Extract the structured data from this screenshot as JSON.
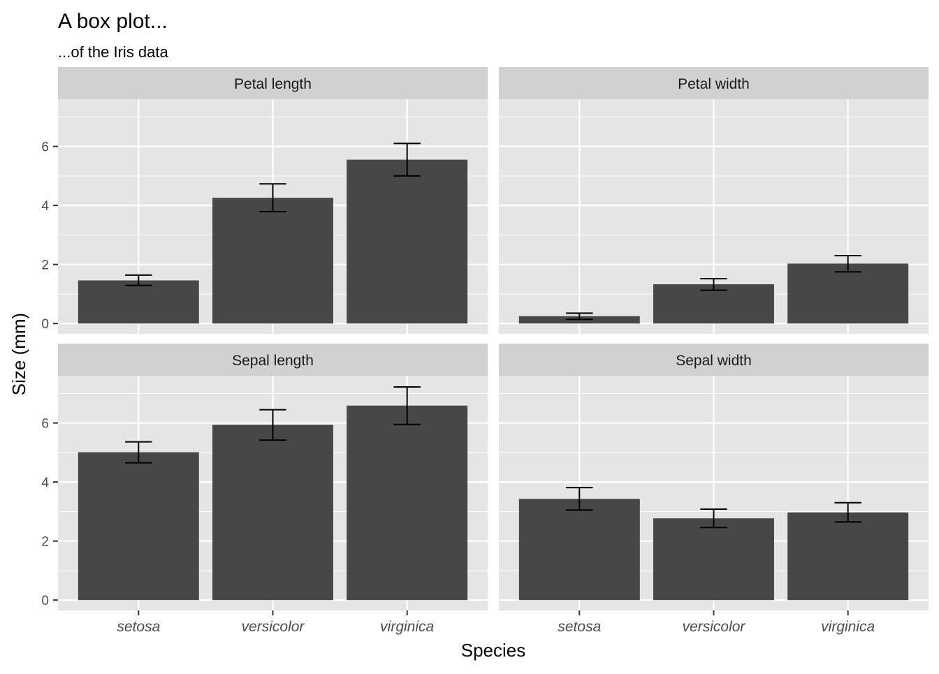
{
  "chart_data": {
    "type": "bar",
    "title": "A box plot...",
    "subtitle": "...of the Iris data",
    "xlabel": "Species",
    "ylabel": "Size (mm)",
    "categories": [
      "setosa",
      "versicolor",
      "virginica"
    ],
    "ylim": [
      -0.35,
      7.6
    ],
    "yticks": [
      0,
      2,
      4,
      6
    ],
    "ytick_labels": [
      "0",
      "2",
      "4",
      "6"
    ],
    "facets": [
      {
        "label": "Petal length",
        "means": [
          1.46,
          4.26,
          5.55
        ],
        "err_lo": [
          1.29,
          3.79,
          5.0
        ],
        "err_hi": [
          1.64,
          4.73,
          6.1
        ]
      },
      {
        "label": "Petal width",
        "means": [
          0.25,
          1.33,
          2.03
        ],
        "err_lo": [
          0.14,
          1.13,
          1.75
        ],
        "err_hi": [
          0.35,
          1.52,
          2.3
        ]
      },
      {
        "label": "Sepal length",
        "means": [
          5.01,
          5.94,
          6.59
        ],
        "err_lo": [
          4.65,
          5.42,
          5.95
        ],
        "err_hi": [
          5.36,
          6.45,
          7.22
        ]
      },
      {
        "label": "Sepal width",
        "means": [
          3.43,
          2.77,
          2.97
        ],
        "err_lo": [
          3.05,
          2.46,
          2.65
        ],
        "err_hi": [
          3.81,
          3.08,
          3.3
        ]
      }
    ],
    "grid": true,
    "colors": {
      "bar": "#474747",
      "panel": "#e5e5e5",
      "strip": "#d1d1d1",
      "grid": "#ffffff",
      "error": "#000000"
    }
  }
}
